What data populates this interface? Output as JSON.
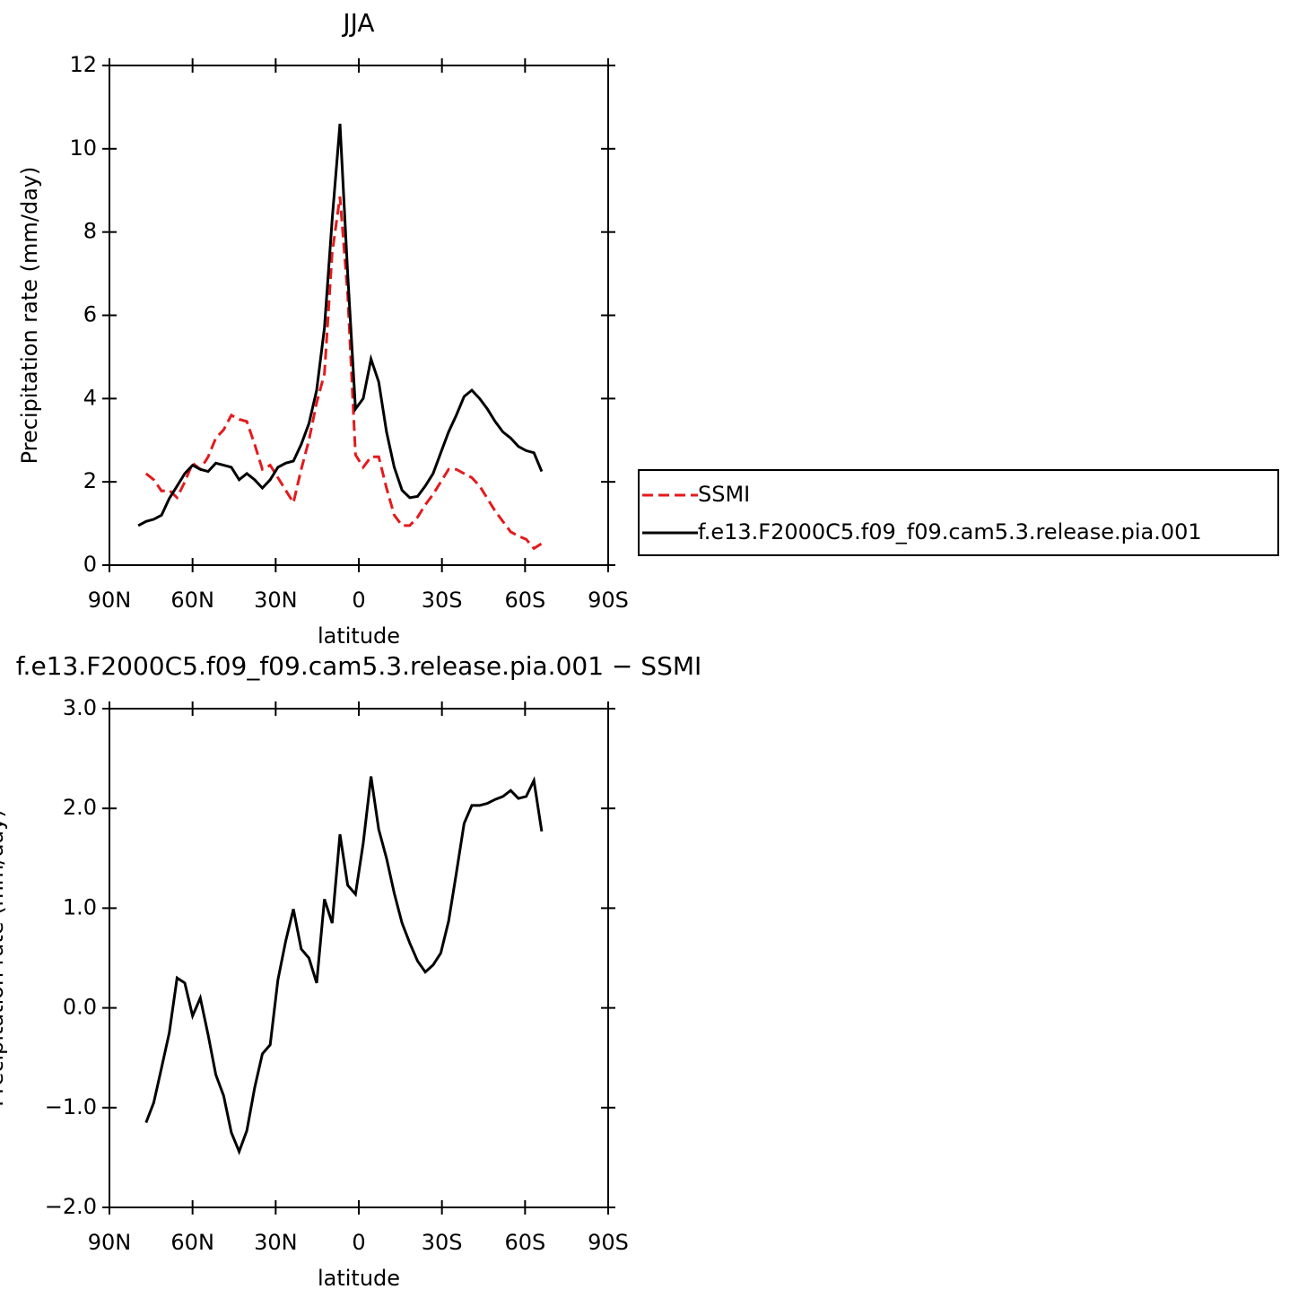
{
  "chart_data": [
    {
      "type": "line",
      "title": "JJA",
      "y_label": "Precipitation rate (mm/day)",
      "x_label": "latitude",
      "x": [
        79.6,
        76.8,
        74.0,
        71.2,
        68.4,
        65.6,
        62.8,
        60.0,
        57.2,
        54.4,
        51.6,
        48.8,
        46.0,
        43.2,
        40.4,
        37.6,
        34.8,
        32.0,
        29.2,
        26.4,
        23.6,
        20.8,
        18.0,
        15.2,
        12.4,
        9.6,
        6.8,
        4.0,
        1.2,
        -1.6,
        -4.4,
        -7.2,
        -10.0,
        -12.8,
        -15.6,
        -18.4,
        -21.2,
        -24.0,
        -26.8,
        -29.6,
        -32.4,
        -35.2,
        -38.0,
        -40.8,
        -43.6,
        -46.4,
        -49.2,
        -52.0,
        -54.8,
        -57.6,
        -60.4,
        -63.2,
        -66.0
      ],
      "series": [
        {
          "name": "SSMI",
          "color": "#e41a1c",
          "linestyle": "dashed",
          "values": [
            null,
            2.2,
            2.05,
            1.78,
            1.8,
            1.62,
            2.0,
            2.45,
            2.3,
            2.6,
            3.05,
            3.25,
            3.6,
            3.5,
            3.45,
            2.9,
            2.3,
            2.4,
            2.1,
            1.8,
            1.5,
            2.3,
            3.0,
            3.9,
            4.6,
            7.5,
            8.85,
            6.5,
            2.65,
            2.35,
            2.6,
            2.6,
            1.85,
            1.2,
            0.95,
            0.95,
            1.15,
            1.45,
            1.7,
            2.0,
            2.3,
            2.3,
            2.2,
            2.1,
            1.9,
            1.6,
            1.3,
            1.05,
            0.8,
            0.7,
            0.62,
            0.4,
            0.52
          ]
        },
        {
          "name": "f.e13.F2000C5.f09_f09.cam5.3.release.pia.001",
          "color": "#000000",
          "linestyle": "solid",
          "values": [
            0.95,
            1.05,
            1.1,
            1.2,
            1.6,
            1.9,
            2.2,
            2.4,
            2.3,
            2.25,
            2.45,
            2.4,
            2.35,
            2.05,
            2.2,
            2.05,
            1.85,
            2.05,
            2.35,
            2.45,
            2.5,
            2.9,
            3.4,
            4.2,
            5.7,
            8.3,
            10.6,
            7.0,
            3.75,
            4.0,
            4.95,
            4.4,
            3.2,
            2.35,
            1.8,
            1.62,
            1.65,
            1.9,
            2.2,
            2.7,
            3.2,
            3.6,
            4.05,
            4.2,
            4.0,
            3.75,
            3.45,
            3.2,
            3.05,
            2.85,
            2.75,
            2.7,
            2.25
          ]
        }
      ],
      "xlim": [
        90,
        -90
      ],
      "xticks": [
        {
          "value": 90,
          "label": "90N"
        },
        {
          "value": 60,
          "label": "60N"
        },
        {
          "value": 30,
          "label": "30N"
        },
        0,
        {
          "value": -30,
          "label": "30S"
        },
        {
          "value": -60,
          "label": "60S"
        },
        {
          "value": -90,
          "label": "90S"
        }
      ],
      "ylim": [
        0,
        12
      ],
      "yticks": [
        0,
        2,
        4,
        6,
        8,
        10,
        12
      ],
      "legend": "right"
    },
    {
      "type": "line",
      "title": "f.e13.F2000C5.f09_f09.cam5.3.release.pia.001 − SSMI",
      "y_label": "Precipitation rate (mm/day)",
      "x_label": "latitude",
      "x": [
        79.6,
        76.8,
        74.0,
        71.2,
        68.4,
        65.6,
        62.8,
        60.0,
        57.2,
        54.4,
        51.6,
        48.8,
        46.0,
        43.2,
        40.4,
        37.6,
        34.8,
        32.0,
        29.2,
        26.4,
        23.6,
        20.8,
        18.0,
        15.2,
        12.4,
        9.6,
        6.8,
        4.0,
        1.2,
        -1.6,
        -4.4,
        -7.2,
        -10.0,
        -12.8,
        -15.6,
        -18.4,
        -21.2,
        -24.0,
        -26.8,
        -29.6,
        -32.4,
        -35.2,
        -38.0,
        -40.8,
        -43.6,
        -46.4,
        -49.2,
        -52.0,
        -54.8,
        -57.6,
        -60.4,
        -63.2,
        -66.0
      ],
      "values": [
        null,
        -1.15,
        -0.95,
        -0.6,
        -0.25,
        0.3,
        0.25,
        -0.08,
        0.1,
        -0.27,
        -0.67,
        -0.88,
        -1.25,
        -1.44,
        -1.23,
        -0.8,
        -0.46,
        -0.37,
        0.28,
        0.67,
        0.99,
        0.59,
        0.5,
        0.25,
        1.09,
        0.85,
        1.74,
        1.23,
        1.14,
        1.65,
        2.32,
        1.79,
        1.5,
        1.15,
        0.85,
        0.65,
        0.47,
        0.36,
        0.43,
        0.55,
        0.87,
        1.35,
        1.85,
        2.03,
        2.03,
        2.05,
        2.09,
        2.12,
        2.18,
        2.1,
        2.12,
        2.28,
        1.77
      ],
      "color": "#000000",
      "xlim": [
        90,
        -90
      ],
      "xticks": [
        {
          "value": 90,
          "label": "90N"
        },
        {
          "value": 60,
          "label": "60N"
        },
        {
          "value": 30,
          "label": "30N"
        },
        0,
        {
          "value": -30,
          "label": "30S"
        },
        {
          "value": -60,
          "label": "60S"
        },
        {
          "value": -90,
          "label": "90S"
        }
      ],
      "ylim": [
        -2,
        3
      ],
      "yticks": [
        {
          "value": -2,
          "label": "−2.0"
        },
        {
          "value": -1,
          "label": "−1.0"
        },
        {
          "value": 0,
          "label": "0.0"
        },
        {
          "value": 1,
          "label": "1.0"
        },
        {
          "value": 2,
          "label": "2.0"
        },
        {
          "value": 3,
          "label": "3.0"
        }
      ]
    }
  ]
}
